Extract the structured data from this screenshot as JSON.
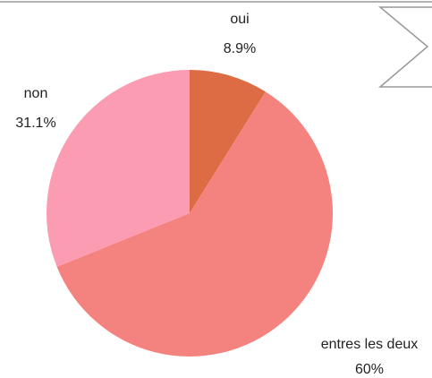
{
  "chart_data": {
    "type": "pie",
    "categories": [
      "oui",
      "entres les deux",
      "non"
    ],
    "values": [
      8.9,
      60,
      31.1
    ],
    "value_labels": [
      "8.9%",
      "60%",
      "31.1%"
    ],
    "colors": [
      "#dd6b43",
      "#f4827e",
      "#fb9cb3"
    ]
  }
}
